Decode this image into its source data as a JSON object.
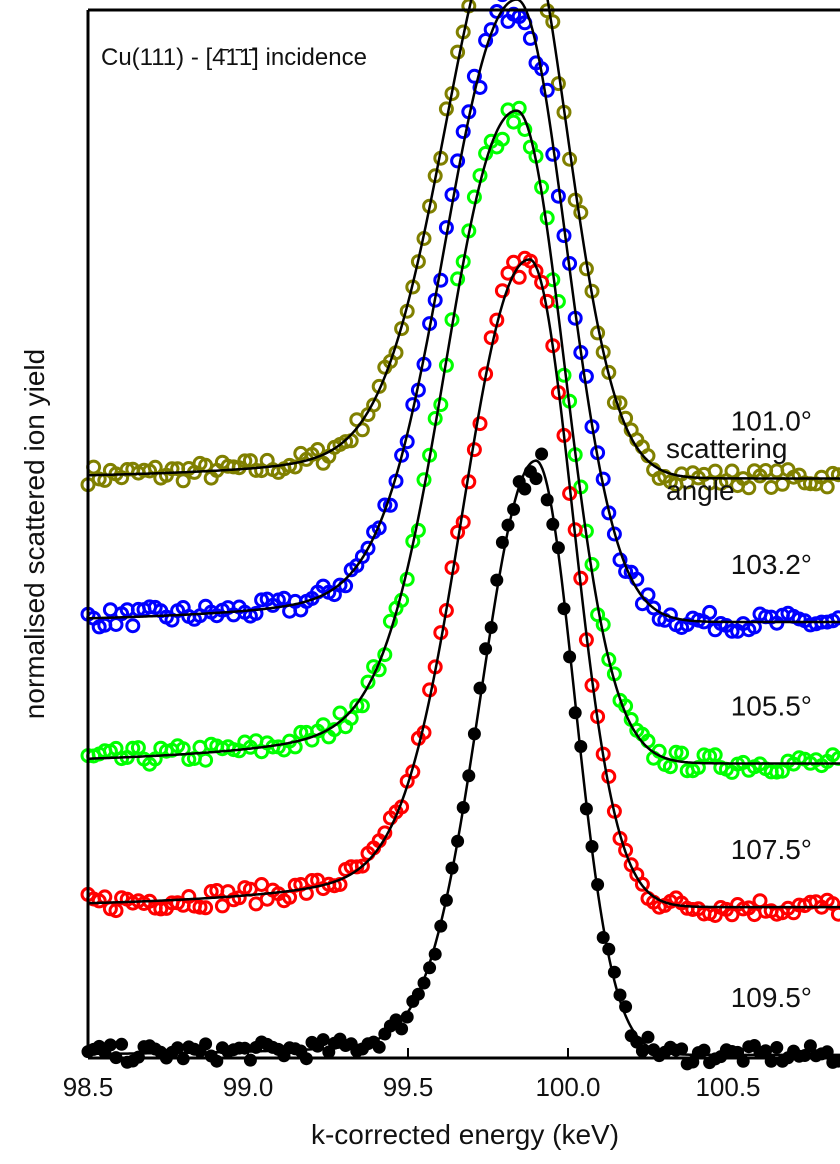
{
  "chart_data": {
    "type": "scatter",
    "title": "Cu(111) - [4̄1̄1̄] incidence",
    "xlabel": "k-corrected energy (keV)",
    "ylabel": "normalised scattered ion yield",
    "xlim": [
      98.5,
      100.85
    ],
    "ylim": [
      0,
      1
    ],
    "x_ticks": [
      "98.5",
      "99.0",
      "99.5",
      "100.0",
      "100.5"
    ],
    "x_tick_values": [
      98.5,
      99.0,
      99.5,
      100.0,
      100.5
    ],
    "y_ticks_labeled": false,
    "grid": false,
    "legend_title": [
      "scattering",
      "angle"
    ],
    "series": [
      {
        "name": "101.0°",
        "color": "#808000",
        "marker": "open-circle",
        "offset": 0.553,
        "left_level": 0.0,
        "peak": 0.554,
        "center": 99.84,
        "sigma_left": 0.205,
        "sigma_right": 0.155,
        "tail": 0.06,
        "tail_width": 0.45
      },
      {
        "name": "103.2°",
        "color": "#0000ff",
        "marker": "open-circle",
        "offset": 0.416,
        "left_level": 0.0,
        "peak": 0.594,
        "center": 99.84,
        "sigma_left": 0.205,
        "sigma_right": 0.155,
        "tail": 0.07,
        "tail_width": 0.45
      },
      {
        "name": "105.5°",
        "color": "#00ff00",
        "marker": "open-circle",
        "offset": 0.281,
        "left_level": 0.0,
        "peak": 0.623,
        "center": 99.84,
        "sigma_left": 0.2,
        "sigma_right": 0.15,
        "tail": 0.09,
        "tail_width": 0.45
      },
      {
        "name": "107.5°",
        "color": "#ff0000",
        "marker": "open-circle",
        "offset": 0.144,
        "left_level": 0.0,
        "peak": 0.618,
        "center": 99.88,
        "sigma_left": 0.19,
        "sigma_right": 0.135,
        "tail": 0.08,
        "tail_width": 0.45
      },
      {
        "name": "109.5°",
        "color": "#000000",
        "marker": "filled-circle",
        "offset": 0.003,
        "left_level": 0.0,
        "peak": 0.567,
        "center": 99.9,
        "sigma_left": 0.165,
        "sigma_right": 0.12,
        "tail": 0.03,
        "tail_width": 0.4
      }
    ],
    "fit_line_color": "#000000"
  }
}
